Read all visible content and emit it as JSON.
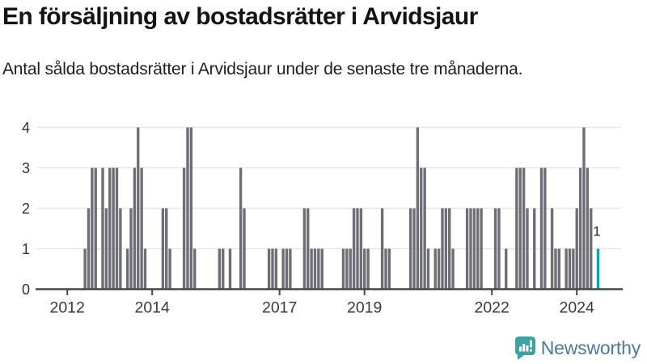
{
  "header": {
    "title": "En försäljning av bostadsrätter i Arvidsjaur",
    "subtitle": "Antal sålda bostadsrätter i Arvidsjaur under de senaste tre månaderna."
  },
  "chart_data": {
    "type": "bar",
    "title": "En försäljning av bostadsrätter i Arvidsjaur",
    "x_unit": "month",
    "x_domain": [
      "2011-05",
      "2025-01"
    ],
    "ylim": [
      0,
      4
    ],
    "yticks": [
      0,
      1,
      2,
      3,
      4
    ],
    "grid": "horizontal",
    "bar_color": "#6e6e76",
    "grid_color": "#e7e7e7",
    "axis_color": "#474747",
    "tick_label_color": "#3a3a3a",
    "xticks": [
      {
        "label": "2012",
        "at": "2012-01"
      },
      {
        "label": "2014",
        "at": "2014-01"
      },
      {
        "label": "2017",
        "at": "2017-01"
      },
      {
        "label": "2019",
        "at": "2019-01"
      },
      {
        "label": "2022",
        "at": "2022-01"
      },
      {
        "label": "2024",
        "at": "2024-01"
      }
    ],
    "series": {
      "name": "Antal sålda bostadsrätter",
      "start_month": "2012-06",
      "values": [
        1,
        2,
        3,
        3,
        0,
        3,
        2,
        3,
        3,
        3,
        2,
        0,
        1,
        2,
        3,
        4,
        3,
        1,
        0,
        0,
        0,
        0,
        2,
        2,
        1,
        0,
        0,
        0,
        3,
        4,
        4,
        1,
        0,
        0,
        0,
        0,
        0,
        0,
        1,
        1,
        0,
        1,
        0,
        0,
        3,
        2,
        0,
        0,
        0,
        0,
        0,
        0,
        1,
        1,
        1,
        0,
        1,
        1,
        1,
        0,
        0,
        0,
        2,
        2,
        1,
        1,
        1,
        1,
        0,
        0,
        0,
        0,
        0,
        1,
        1,
        1,
        2,
        2,
        2,
        1,
        1,
        0,
        0,
        0,
        2,
        1,
        1,
        0,
        0,
        0,
        0,
        0,
        2,
        2,
        4,
        3,
        3,
        1,
        0,
        1,
        1,
        2,
        2,
        2,
        1,
        0,
        0,
        0,
        2,
        2,
        2,
        2,
        2,
        0,
        0,
        0,
        2,
        2,
        0,
        1,
        0,
        0,
        3,
        3,
        3,
        2,
        0,
        2,
        0,
        3,
        3,
        0,
        2,
        1,
        1,
        0,
        1,
        1,
        1,
        2,
        3,
        4,
        3,
        2,
        0,
        1
      ]
    },
    "highlight": {
      "month": "2024-07",
      "value": 1,
      "label": "1",
      "color": "#0fa3a8",
      "label_color": "#222222"
    }
  },
  "footer": {
    "logo_text": "Newsworthy",
    "logo_icon": "newsworthy-speech-bubble-bar-chart-icon",
    "logo_icon_color": "#3ba3a4",
    "logo_text_color": "#4e7899"
  }
}
